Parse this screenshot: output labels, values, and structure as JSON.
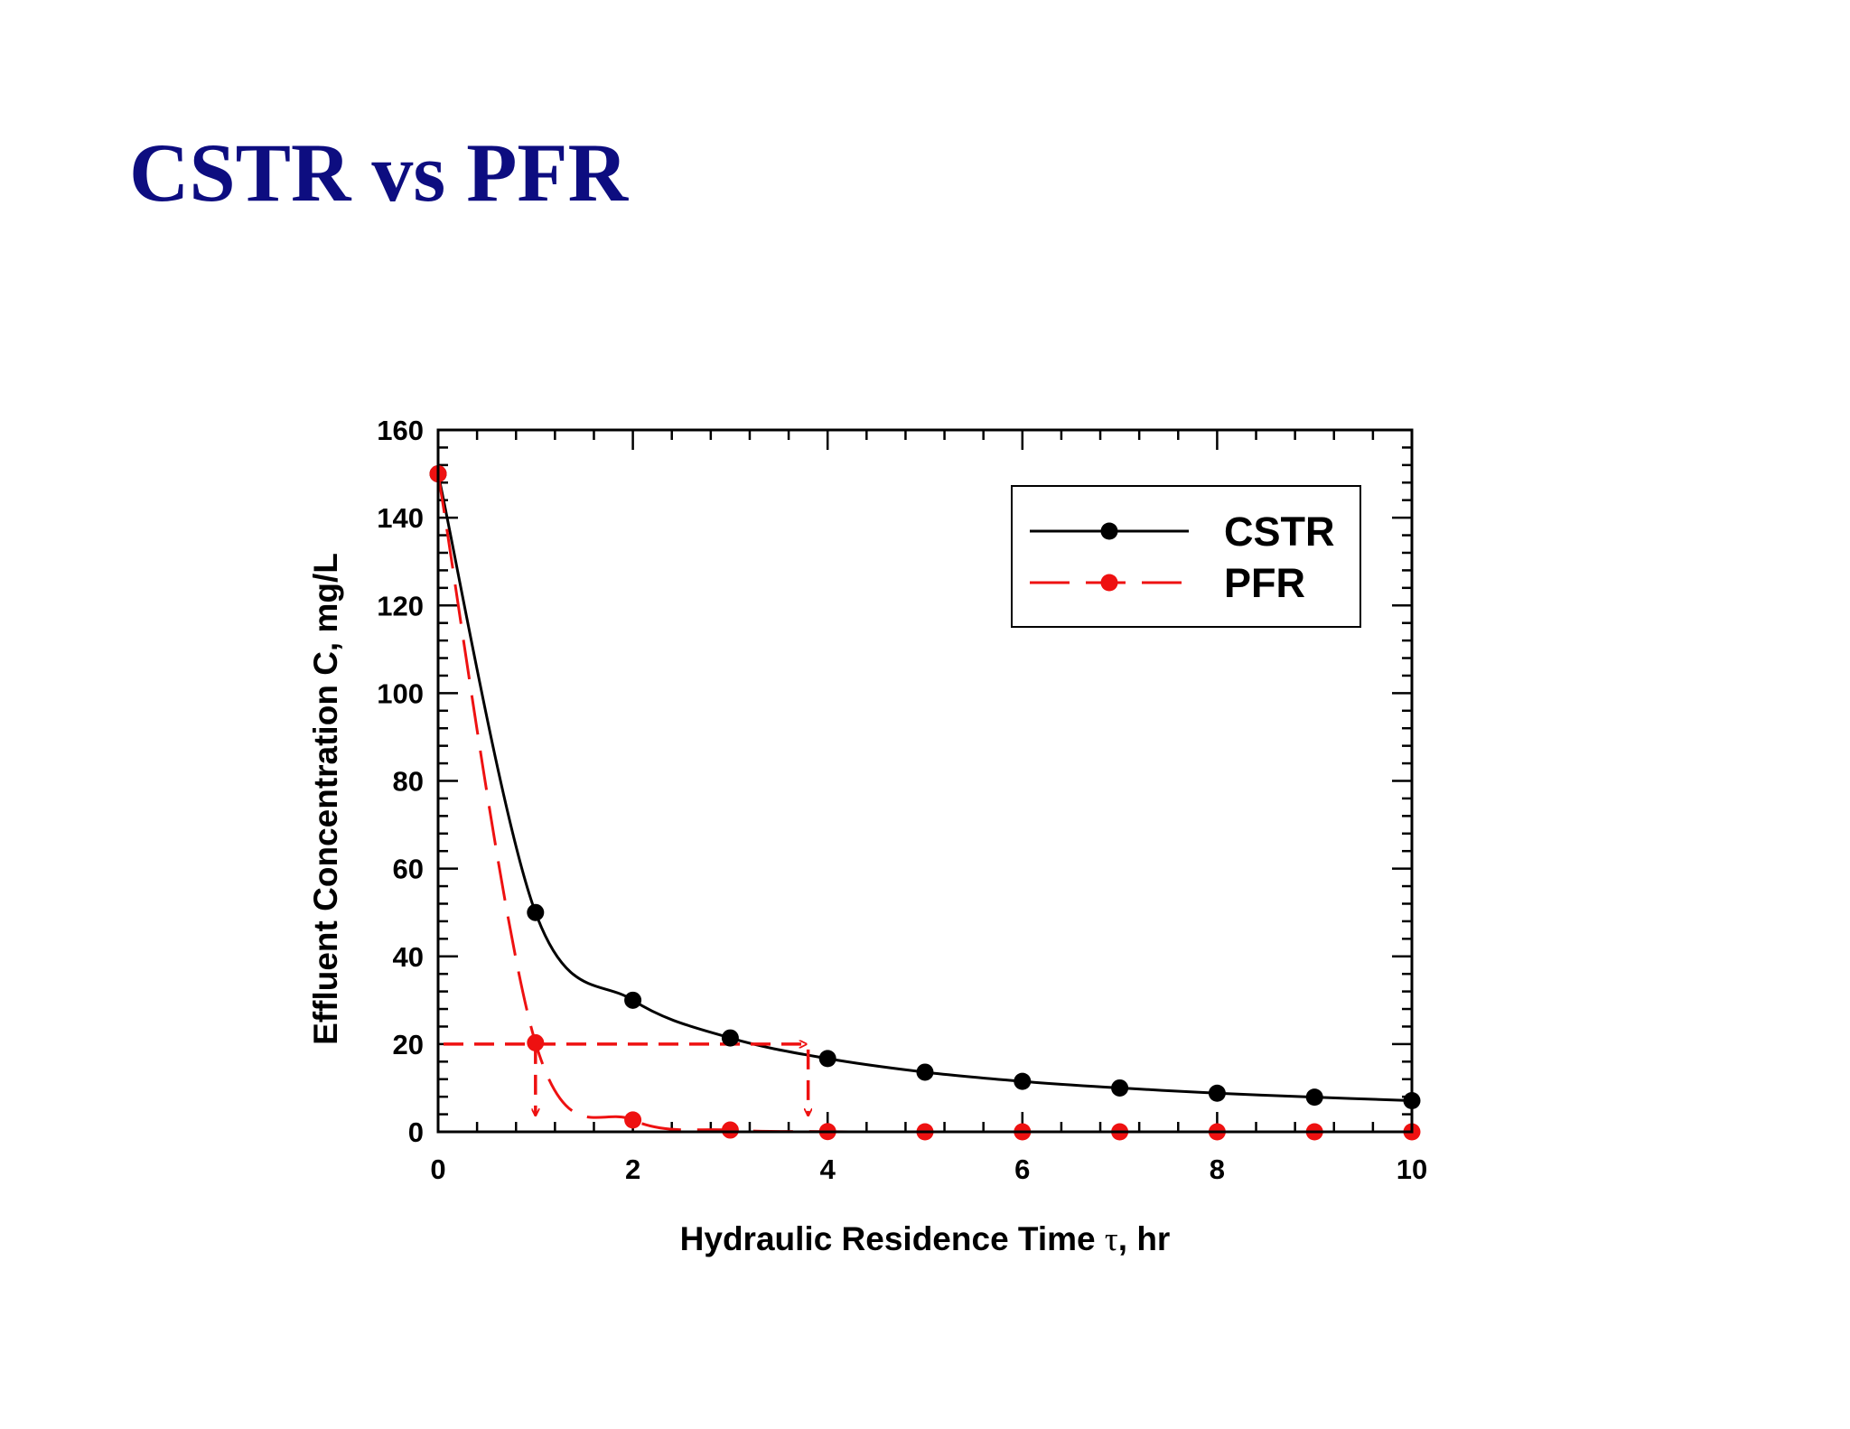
{
  "slide": {
    "title": "CSTR vs PFR"
  },
  "chart_data": {
    "type": "line",
    "xlabel": "Hydraulic Residence Time τ, hr",
    "xlabel_parts": {
      "before": "Hydraulic Residence Time ",
      "symbol": "τ",
      "after": ", hr"
    },
    "ylabel": "Effluent Concentration C, mg/L",
    "xlim": [
      0,
      10
    ],
    "ylim": [
      0,
      160
    ],
    "xticks": [
      0,
      2,
      4,
      6,
      8,
      10
    ],
    "yticks": [
      0,
      20,
      40,
      60,
      80,
      100,
      120,
      140,
      160
    ],
    "grid": false,
    "legend_position": "top-right",
    "series": [
      {
        "name": "CSTR",
        "color": "#000000",
        "line_style": "solid",
        "x": [
          0,
          1,
          2,
          3,
          4,
          5,
          6,
          7,
          8,
          9,
          10
        ],
        "y": [
          150,
          50,
          30,
          21.4,
          16.7,
          13.6,
          11.5,
          10,
          8.8,
          7.9,
          7.1
        ]
      },
      {
        "name": "PFR",
        "color": "#ee1111",
        "line_style": "dashed",
        "x": [
          0,
          1,
          2,
          3,
          4,
          5,
          6,
          7,
          8,
          9,
          10
        ],
        "y": [
          150,
          20.3,
          2.7,
          0.4,
          0.05,
          0,
          0,
          0,
          0,
          0,
          0
        ]
      }
    ],
    "annotations": [
      {
        "type": "dashed-arrow",
        "color": "#ee1111",
        "description": "horizontal reference at C = 20 from the y-axis, with drop arrows at τ = 1 (PFR) and τ = 3.8 (CSTR)",
        "level": 20,
        "x_pfr": 1,
        "x_cstr": 3.8
      }
    ]
  }
}
